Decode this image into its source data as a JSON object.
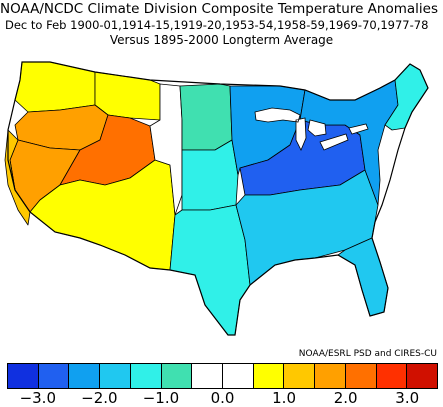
{
  "header": {
    "title": "NOAA/NCDC Climate Division Composite Temperature Anomalies (F)",
    "subtitle": "Dec to Feb  1900-01,1914-15,1919-20,1953-54,1958-59,1969-70,1977-78",
    "reference": "Versus 1895-2000 Longterm Average"
  },
  "credit": "NOAA/ESRL PSD and CIRES-CU",
  "legend": {
    "colors": [
      "#1030e0",
      "#2060f0",
      "#10a0f0",
      "#20c8f0",
      "#30f0e8",
      "#40e0b0",
      "#ffffff",
      "#ffffff",
      "#ffff00",
      "#ffc800",
      "#ffa000",
      "#ff7000",
      "#ff3000",
      "#d01000"
    ],
    "tick_labels": [
      "−3.0",
      "−2.0",
      "−1.0",
      "0.0",
      "1.0",
      "2.0",
      "3.0"
    ]
  },
  "map_regions": [
    {
      "name": "pacific-northwest",
      "color": "#ffff00"
    },
    {
      "name": "northern-rockies",
      "color": "#ffff00"
    },
    {
      "name": "northern-great-basin",
      "color": "#ffa000"
    },
    {
      "name": "southern-great-basin",
      "color": "#ffa000"
    },
    {
      "name": "utah-core",
      "color": "#ff7000"
    },
    {
      "name": "california",
      "color": "#ffc800"
    },
    {
      "name": "southwest",
      "color": "#ffff00"
    },
    {
      "name": "colorado",
      "color": "#ffffff"
    },
    {
      "name": "northern-plains",
      "color": "#40e0b0"
    },
    {
      "name": "central-plains",
      "color": "#30f0e8"
    },
    {
      "name": "texas-east",
      "color": "#30f0e8"
    },
    {
      "name": "midwest",
      "color": "#10a0f0"
    },
    {
      "name": "ohio-valley",
      "color": "#2060f0"
    },
    {
      "name": "south",
      "color": "#20c8f0"
    },
    {
      "name": "northeast",
      "color": "#10a0f0"
    },
    {
      "name": "new-england-north",
      "color": "#30f0e8"
    },
    {
      "name": "florida",
      "color": "#20c8f0"
    }
  ]
}
